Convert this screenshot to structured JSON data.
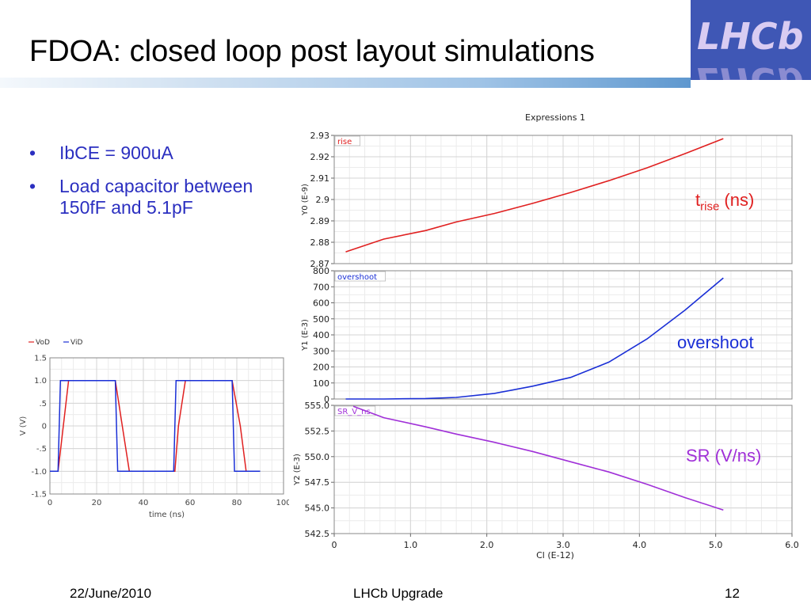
{
  "slide": {
    "title": "FDOA: closed loop post layout simulations",
    "logo_text": "LHCb",
    "bullets": [
      "IbCE = 900uA",
      "Load capacitor between 150fF and 5.1pF"
    ],
    "footer_date": "22/June/2010",
    "footer_center": "LHCb Upgrade",
    "page_number": "12"
  },
  "annotations": {
    "rise_t": "t",
    "rise_sub": "rise",
    "rise_unit": " (ns)",
    "overshoot": "overshoot",
    "sr": "SR (V/ns)"
  },
  "colors": {
    "title_bar": "#5f98cf",
    "bullet_text": "#2b2fc0",
    "rise": "#e02020",
    "overshoot": "#1a2fd6",
    "sr": "#a030d8",
    "vod": "#e02020",
    "vid": "#1a2fd6"
  },
  "chart_data": [
    {
      "type": "line",
      "title": "",
      "legend": [
        "VoD",
        "ViD"
      ],
      "xlabel": "time (ns)",
      "ylabel": "V (V)",
      "xlim": [
        0,
        100
      ],
      "ylim": [
        -1.5,
        1.5
      ],
      "x_ticks": [
        0,
        20,
        40,
        60,
        80,
        100
      ],
      "x_tick_labels": [
        "0",
        "20",
        "40",
        "60",
        "80",
        "100"
      ],
      "y_ticks": [
        1.5,
        1.0,
        0.5,
        0,
        -0.5,
        -1.0,
        -1.5
      ],
      "y_tick_labels": [
        "1.5",
        "1.0",
        ".5",
        "0",
        "-.5",
        "-1.0",
        "-1.5"
      ],
      "series": [
        {
          "name": "VoD",
          "color": "#e02020",
          "x": [
            0,
            3.5,
            8,
            28,
            31,
            34,
            53.5,
            55,
            58,
            78,
            81.5,
            84
          ],
          "y": [
            -1.0,
            -1.0,
            1.0,
            1.0,
            0.0,
            -1.0,
            -1.0,
            0.0,
            1.0,
            1.0,
            0.0,
            -1.0
          ]
        },
        {
          "name": "ViD",
          "color": "#1a2fd6",
          "x": [
            0,
            3.5,
            4.5,
            28,
            29,
            53,
            54,
            78,
            79,
            90
          ],
          "y": [
            -1.0,
            -1.0,
            1.0,
            1.0,
            -1.0,
            -1.0,
            1.0,
            1.0,
            -1.0,
            -1.0
          ]
        }
      ]
    },
    {
      "type": "line",
      "title": "Expressions 1",
      "xlabel": "Cl (E-12)",
      "x_ticks": [
        0,
        1.0,
        2.0,
        3.0,
        4.0,
        5.0,
        6.0
      ],
      "x_tick_labels": [
        "0",
        "1.0",
        "2.0",
        "3.0",
        "4.0",
        "5.0",
        "6.0"
      ],
      "xlim": [
        0,
        6.0
      ],
      "panels": [
        {
          "label": "rise",
          "ylabel": "Y0 (E-9)",
          "color": "#e02020",
          "ylim": [
            2.87,
            2.93
          ],
          "y_ticks": [
            2.93,
            2.92,
            2.91,
            2.9,
            2.89,
            2.88,
            2.87
          ],
          "y_tick_labels": [
            "2.93",
            "2.92",
            "2.91",
            "2.9",
            "2.89",
            "2.88",
            "2.87"
          ],
          "x": [
            0.15,
            0.65,
            1.2,
            1.6,
            2.1,
            2.6,
            3.1,
            3.6,
            4.1,
            4.6,
            5.1
          ],
          "y": [
            2.8755,
            2.8815,
            2.8855,
            2.8895,
            2.8935,
            2.8982,
            2.9033,
            2.9088,
            2.9148,
            2.9215,
            2.9285
          ]
        },
        {
          "label": "overshoot",
          "ylabel": "Y1 (E-3)",
          "color": "#1a2fd6",
          "ylim": [
            0,
            800
          ],
          "y_ticks": [
            800,
            700,
            600,
            500,
            400,
            300,
            200,
            100,
            0
          ],
          "y_tick_labels": [
            "800",
            "700",
            "600",
            "500",
            "400",
            "300",
            "200",
            "100",
            "0"
          ],
          "x": [
            0.15,
            0.65,
            1.2,
            1.6,
            2.1,
            2.6,
            3.1,
            3.6,
            4.1,
            4.6,
            5.1
          ],
          "y": [
            0,
            0,
            3,
            10,
            35,
            80,
            135,
            230,
            375,
            555,
            755
          ]
        },
        {
          "label": "SR_V_ns",
          "ylabel": "Y2 (E-3)",
          "color": "#a030d8",
          "ylim": [
            542.5,
            555.0
          ],
          "y_ticks": [
            555.0,
            552.5,
            550.0,
            547.5,
            545.0,
            542.5
          ],
          "y_tick_labels": [
            "555.0",
            "552.5",
            "550.0",
            "547.5",
            "545.0",
            "542.5"
          ],
          "x": [
            0.25,
            0.65,
            1.2,
            1.6,
            2.1,
            2.6,
            3.1,
            3.6,
            4.1,
            4.6,
            5.1
          ],
          "y": [
            554.9,
            553.8,
            552.9,
            552.2,
            551.4,
            550.5,
            549.5,
            548.5,
            547.3,
            546.0,
            544.8
          ]
        }
      ]
    }
  ]
}
